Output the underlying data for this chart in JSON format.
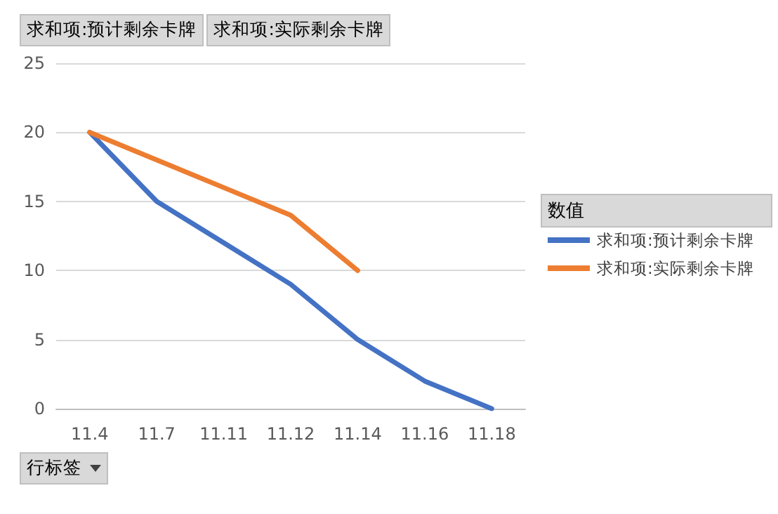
{
  "chart_data": {
    "type": "line",
    "categories": [
      "11.4",
      "11.7",
      "11.11",
      "11.12",
      "11.14",
      "11.16",
      "11.18"
    ],
    "series": [
      {
        "name": "求和项:预计剩余卡牌",
        "color": "#4472c4",
        "values": [
          20,
          15,
          12,
          9,
          5,
          2,
          0
        ]
      },
      {
        "name": "求和项:实际剩余卡牌",
        "color": "#ed7d31",
        "values": [
          20,
          18,
          16,
          14,
          10,
          null,
          null
        ]
      }
    ],
    "ylim": [
      0,
      25
    ],
    "yticks": [
      0,
      5,
      10,
      15,
      20,
      25
    ],
    "grid": "y",
    "legend": "right",
    "legend_title": "数值",
    "annotations": [
      "行标签"
    ],
    "marker": "none",
    "line_style": "solid"
  }
}
